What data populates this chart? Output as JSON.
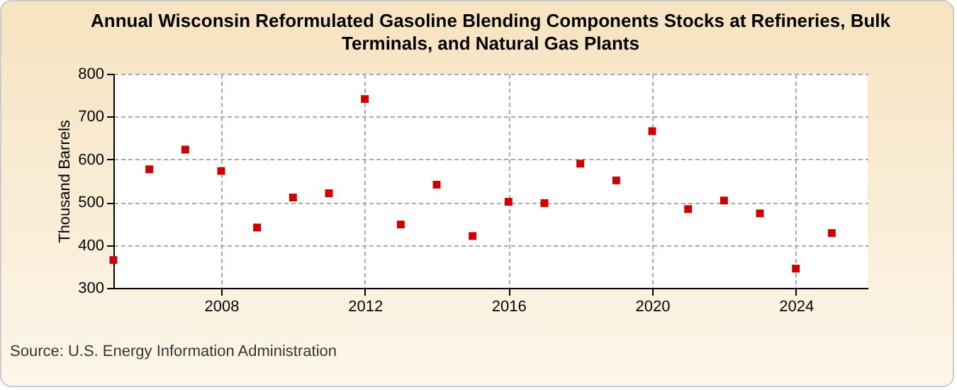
{
  "chart_data": {
    "type": "scatter",
    "title": "Annual Wisconsin Reformulated Gasoline Blending Components Stocks at Refineries, Bulk Terminals, and Natural Gas Plants",
    "ylabel": "Thousand Barrels",
    "annotations": [
      "Source: U.S. Energy Information Administration"
    ],
    "x": [
      2005,
      2006,
      2007,
      2008,
      2009,
      2010,
      2011,
      2012,
      2013,
      2014,
      2015,
      2016,
      2017,
      2018,
      2019,
      2020,
      2021,
      2022,
      2023,
      2024,
      2025
    ],
    "series": [
      {
        "color": "#cc0000",
        "values": [
          365,
          577,
          623,
          573,
          441,
          511,
          521,
          741,
          448,
          541,
          421,
          501,
          498,
          590,
          551,
          666,
          484,
          504,
          474,
          345,
          428
        ]
      }
    ],
    "xlim": [
      2005,
      2026
    ],
    "xticks": [
      2008,
      2012,
      2016,
      2020,
      2024
    ],
    "ylim": [
      300,
      800
    ],
    "yticks": [
      300,
      400,
      500,
      600,
      700,
      800
    ],
    "grid": true,
    "marker": "square"
  }
}
